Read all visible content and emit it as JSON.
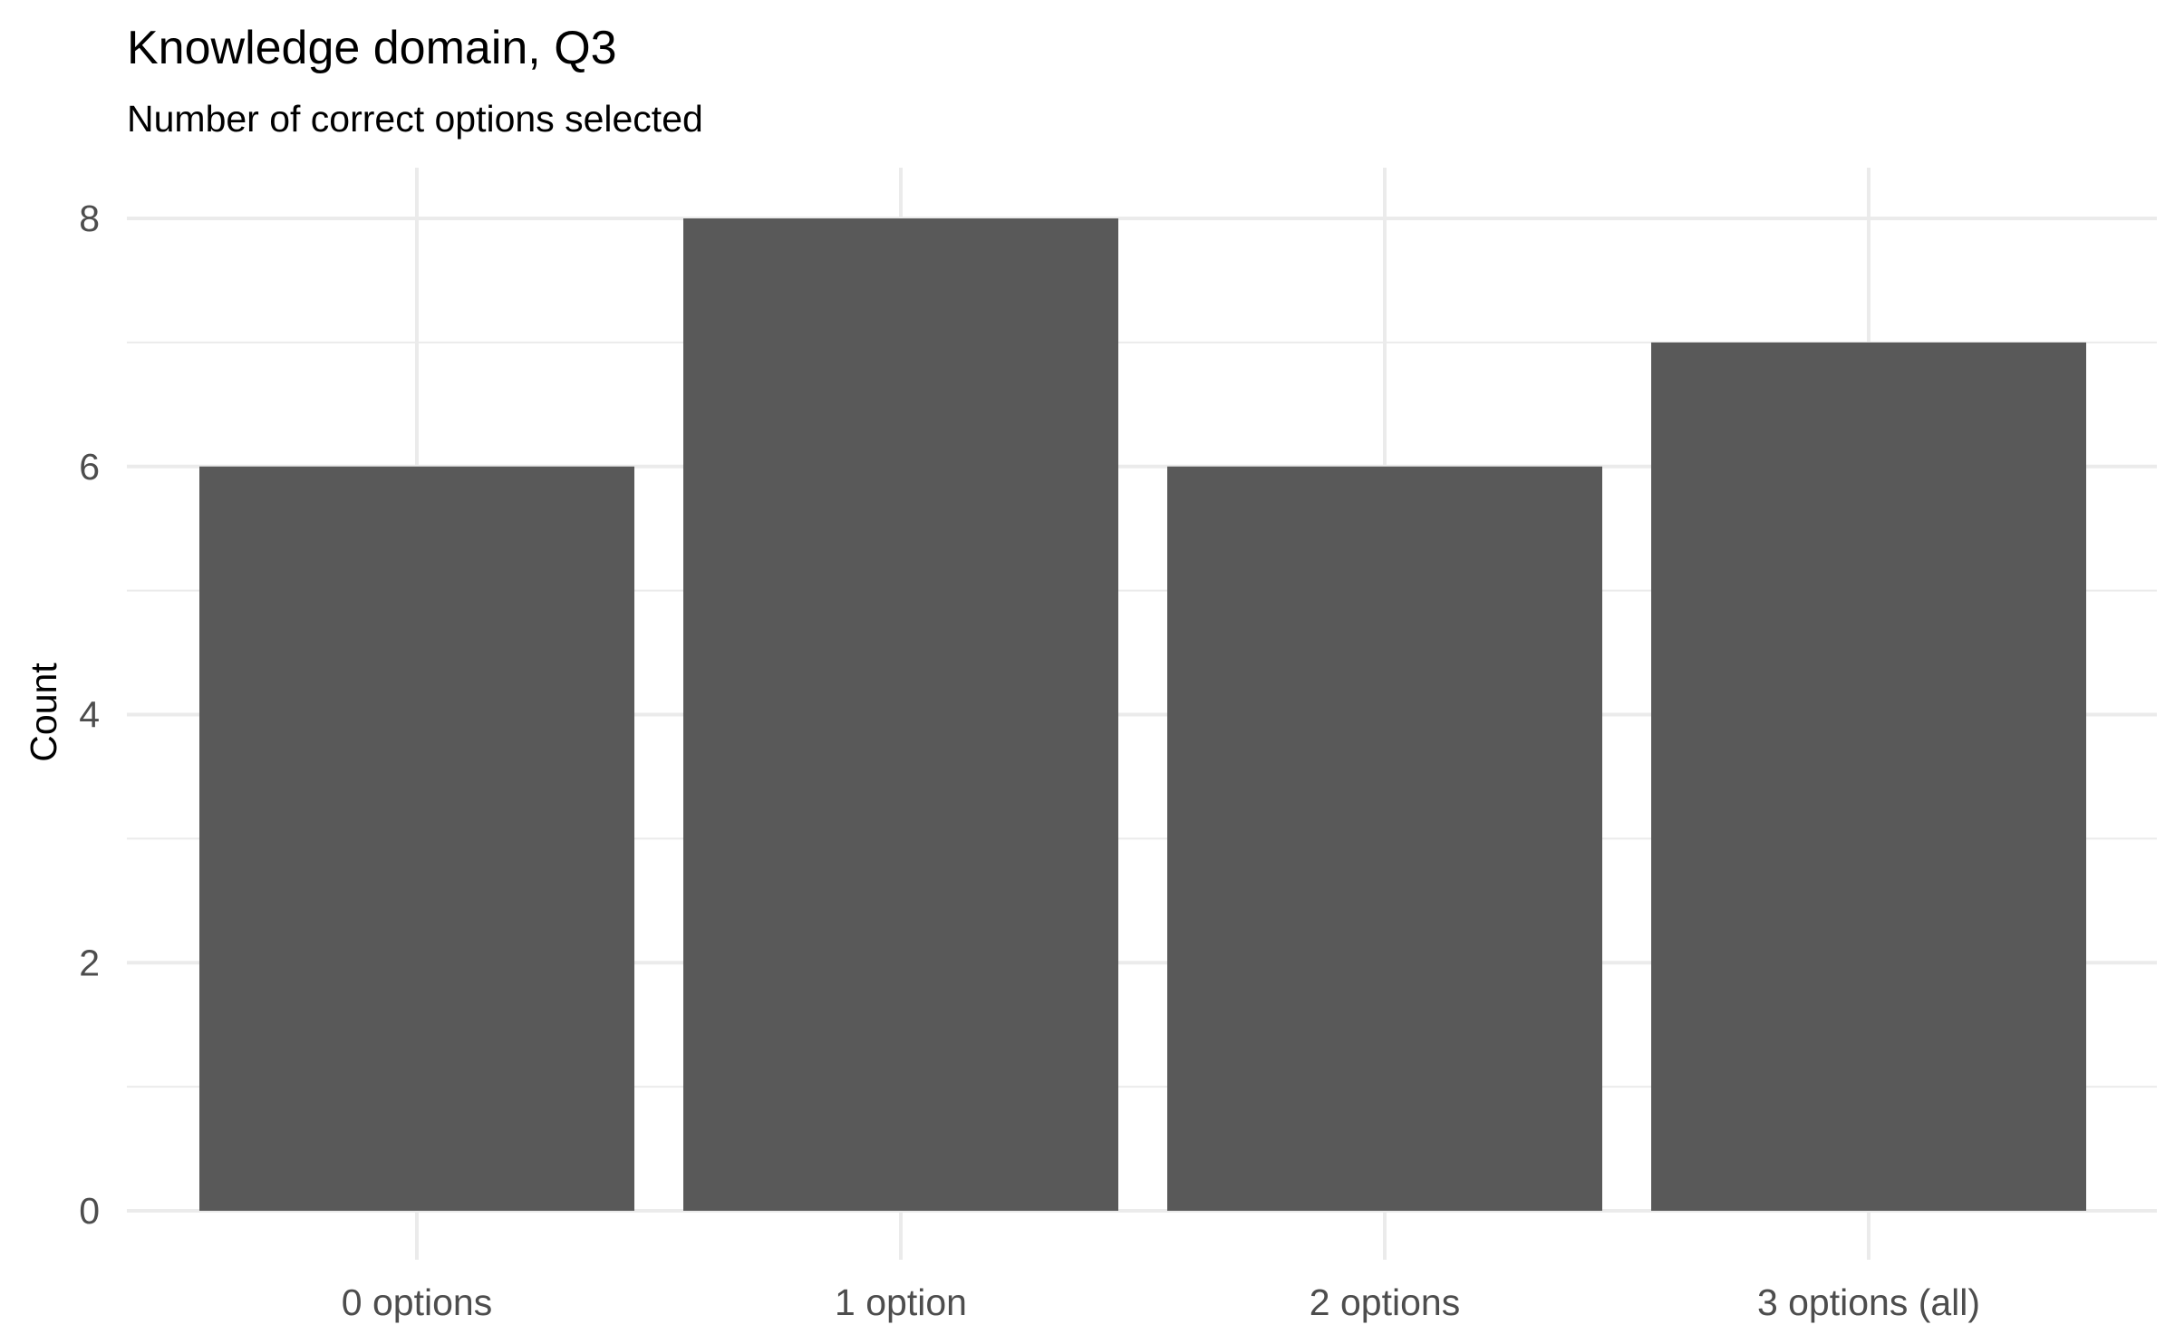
{
  "chart_data": {
    "type": "bar",
    "title": "Knowledge domain, Q3",
    "subtitle": "Number of correct options selected",
    "xlabel": "",
    "ylabel": "Count",
    "categories": [
      "0 options",
      "1 option",
      "2 options",
      "3 options (all)"
    ],
    "values": [
      6,
      8,
      6,
      7
    ],
    "ylim": [
      0,
      8.4
    ],
    "y_ticks": [
      0,
      2,
      4,
      6,
      8
    ],
    "y_minor_ticks": [
      1,
      3,
      5,
      7
    ],
    "grid": true,
    "legend": "none",
    "bar_color": "#595959",
    "grid_color": "#ebebeb"
  }
}
